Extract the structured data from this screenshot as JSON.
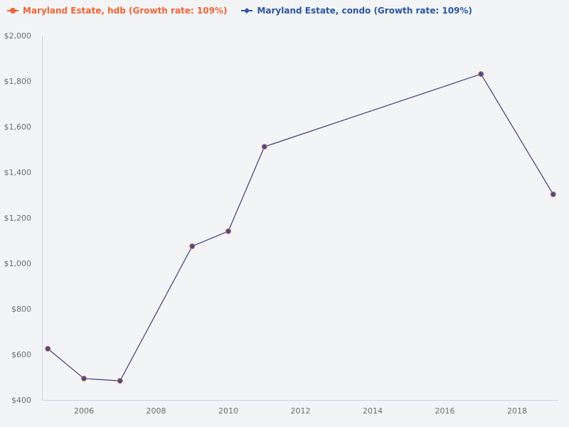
{
  "legend": {
    "hdb_label": "Maryland Estate, hdb (Growth rate: 109%)",
    "condo_label": "Maryland Estate, condo (Growth rate: 109%)"
  },
  "colors": {
    "hdb": "#f26333",
    "condo": "#2a55a4",
    "line": "#3d3d7a",
    "axis": "#c9d3e6",
    "background": "#f3f4f6"
  },
  "chart_data": {
    "type": "line",
    "title": "",
    "xlabel": "",
    "ylabel": "",
    "x": [
      2005,
      2006,
      2007,
      2009,
      2010,
      2011,
      2017,
      2019
    ],
    "series": [
      {
        "name": "Maryland Estate, hdb (Growth rate: 109%)",
        "values": [
          625,
          494,
          484,
          1075,
          1141,
          1512,
          1831,
          1303
        ]
      },
      {
        "name": "Maryland Estate, condo (Growth rate: 109%)",
        "values": [
          625,
          494,
          484,
          1075,
          1141,
          1512,
          1831,
          1303
        ]
      }
    ],
    "ylim": [
      400,
      2000
    ],
    "xlim": [
      2004.95,
      2019.1
    ],
    "y_ticks": [
      "$400",
      "$600",
      "$800",
      "$1,000",
      "$1,200",
      "$1,400",
      "$1,600",
      "$1,800",
      "$2,000"
    ],
    "x_ticks": [
      "2006",
      "2008",
      "2010",
      "2012",
      "2014",
      "2016",
      "2018"
    ],
    "grid": false,
    "legend_position": "top-left"
  }
}
